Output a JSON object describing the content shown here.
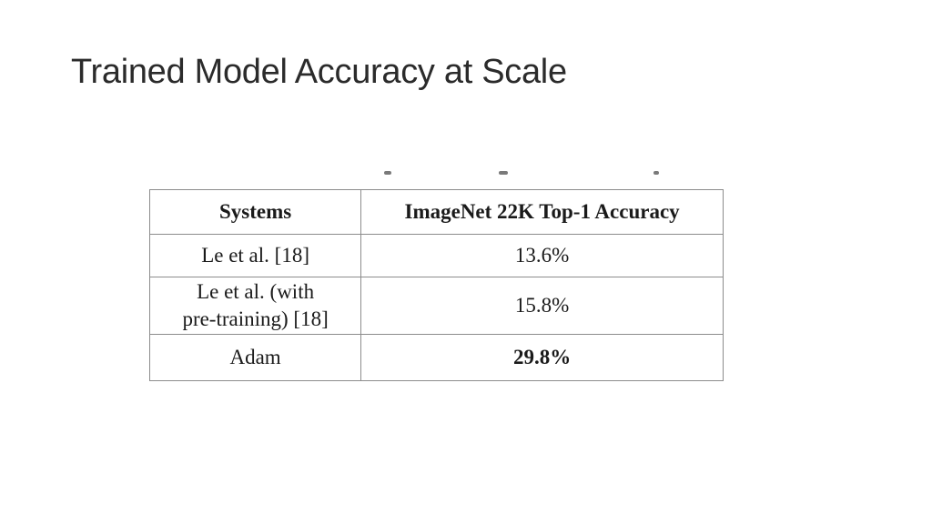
{
  "slide": {
    "title": "Trained Model Accuracy at Scale"
  },
  "table": {
    "headers": [
      "Systems",
      "ImageNet 22K Top-1 Accuracy"
    ],
    "rows": [
      {
        "system": [
          "Le et al. [18]"
        ],
        "accuracy": "13.6%",
        "bold": false
      },
      {
        "system": [
          "Le et al. (with",
          "pre-training) [18]"
        ],
        "accuracy": "15.8%",
        "bold": false
      },
      {
        "system": [
          "Adam"
        ],
        "accuracy": "29.8%",
        "bold": true
      }
    ]
  }
}
